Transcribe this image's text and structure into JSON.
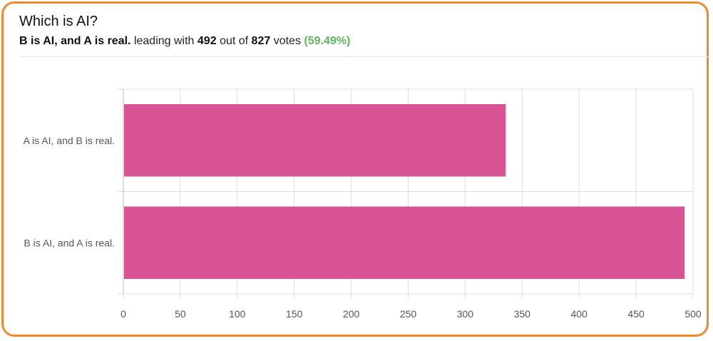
{
  "poll": {
    "title": "Which is AI?",
    "leader_label": "B is AI, and A is real.",
    "leading_text": "leading with",
    "leader_votes": "492",
    "out_of_text": "out of",
    "total_votes": "827",
    "votes_text": "votes",
    "percent_text": "(59.49%)"
  },
  "colors": {
    "border": "#f08a2c",
    "bar": "#d95495",
    "percent": "#5cb85c",
    "grid": "#dddddd"
  },
  "chart_data": {
    "type": "bar",
    "orientation": "horizontal",
    "categories": [
      "A is AI, and B is real.",
      "B is AI, and A is real."
    ],
    "values": [
      335,
      492
    ],
    "xlim": [
      0,
      500
    ],
    "xticks": [
      0,
      50,
      100,
      150,
      200,
      250,
      300,
      350,
      400,
      450,
      500
    ],
    "grid": true,
    "legend": "none"
  }
}
